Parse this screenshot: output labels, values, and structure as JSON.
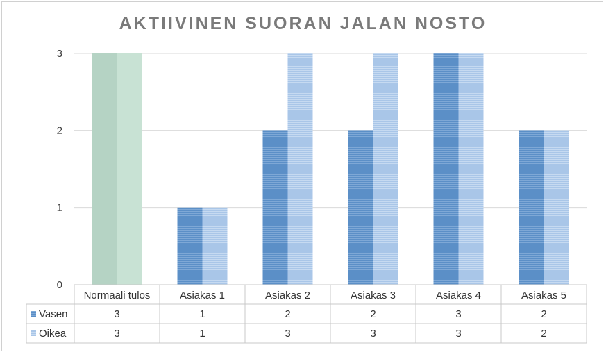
{
  "chart_data": {
    "type": "bar",
    "title": "AKTIIVINEN SUORAN JALAN NOSTO",
    "categories": [
      "Normaali tulos",
      "Asiakas 1",
      "Asiakas 2",
      "Asiakas 3",
      "Asiakas 4",
      "Asiakas 5"
    ],
    "series": [
      {
        "name": "Vasen",
        "values": [
          3,
          1,
          2,
          2,
          3,
          2
        ],
        "color": "#5b8fc7"
      },
      {
        "name": "Oikea",
        "values": [
          3,
          1,
          3,
          3,
          3,
          2
        ],
        "color": "#a9c6e8"
      }
    ],
    "highlight": {
      "category": "Normaali tulos",
      "colors": [
        "#b5d3c4",
        "#c8e2d4"
      ]
    },
    "yticks": [
      "0",
      "1",
      "2",
      "3"
    ],
    "ylim": [
      0,
      3
    ],
    "grid": true,
    "data_table": true,
    "legend": "in data table"
  }
}
